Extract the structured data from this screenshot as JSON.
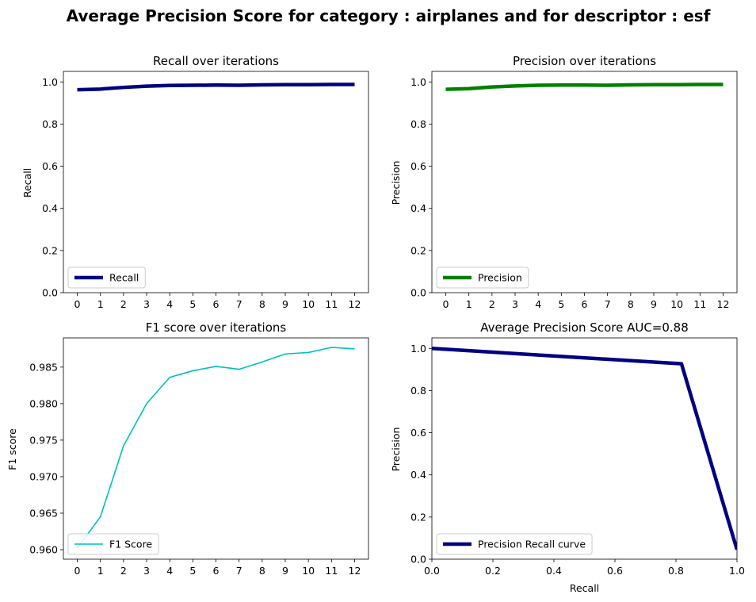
{
  "figure": {
    "title": "Average Precision Score for category : airplanes and for descriptor : esf"
  },
  "chart_data": [
    {
      "type": "line",
      "title": "Recall over iterations",
      "xlabel": "",
      "ylabel": "Recall",
      "x": [
        0,
        1,
        2,
        3,
        4,
        5,
        6,
        7,
        8,
        9,
        10,
        11,
        12
      ],
      "xticks": [
        "0",
        "1",
        "2",
        "3",
        "4",
        "5",
        "6",
        "7",
        "8",
        "9",
        "10",
        "11",
        "12"
      ],
      "yticks": [
        "0.0",
        "0.2",
        "0.4",
        "0.6",
        "0.8",
        "1.0"
      ],
      "ylim": [
        0,
        1.05
      ],
      "series": [
        {
          "name": "Recall",
          "color": "#000080",
          "values": [
            0.963,
            0.966,
            0.974,
            0.98,
            0.983,
            0.984,
            0.985,
            0.984,
            0.986,
            0.987,
            0.987,
            0.988,
            0.988
          ]
        }
      ],
      "legend": "lower-left",
      "grid": false
    },
    {
      "type": "line",
      "title": "Precision over iterations",
      "xlabel": "",
      "ylabel": "Precision",
      "x": [
        0,
        1,
        2,
        3,
        4,
        5,
        6,
        7,
        8,
        9,
        10,
        11,
        12
      ],
      "xticks": [
        "0",
        "1",
        "2",
        "3",
        "4",
        "5",
        "6",
        "7",
        "8",
        "9",
        "10",
        "11",
        "12"
      ],
      "yticks": [
        "0.0",
        "0.2",
        "0.4",
        "0.6",
        "0.8",
        "1.0"
      ],
      "ylim": [
        0,
        1.05
      ],
      "series": [
        {
          "name": "Precision",
          "color": "#008000",
          "values": [
            0.965,
            0.968,
            0.976,
            0.981,
            0.984,
            0.985,
            0.985,
            0.984,
            0.986,
            0.987,
            0.987,
            0.988,
            0.988
          ]
        }
      ],
      "legend": "lower-left",
      "grid": false
    },
    {
      "type": "line",
      "title": "F1 score over iterations",
      "xlabel": "",
      "ylabel": "F1 score",
      "x": [
        0,
        1,
        2,
        3,
        4,
        5,
        6,
        7,
        8,
        9,
        10,
        11,
        12
      ],
      "xticks": [
        "0",
        "1",
        "2",
        "3",
        "4",
        "5",
        "6",
        "7",
        "8",
        "9",
        "10",
        "11",
        "12"
      ],
      "yticks": [
        "0.960",
        "0.965",
        "0.970",
        "0.975",
        "0.980",
        "0.985"
      ],
      "ylim": [
        0.9587,
        0.989
      ],
      "series": [
        {
          "name": "F1 Score",
          "color": "#00bfbf",
          "values": [
            0.9602,
            0.9645,
            0.9742,
            0.98,
            0.9836,
            0.9845,
            0.9851,
            0.9847,
            0.9857,
            0.9868,
            0.987,
            0.9877,
            0.9875
          ]
        }
      ],
      "legend": "lower-left",
      "grid": false
    },
    {
      "type": "line",
      "title": "Average Precision Score AUC=0.88",
      "xlabel": "Recall",
      "ylabel": "Precision",
      "xlim": [
        0,
        1
      ],
      "ylim": [
        0,
        1.05
      ],
      "xticks": [
        "0.0",
        "0.2",
        "0.4",
        "0.6",
        "0.8",
        "1.0"
      ],
      "yticks": [
        "0.0",
        "0.2",
        "0.4",
        "0.6",
        "0.8",
        "1.0"
      ],
      "series": [
        {
          "name": "Precision Recall curve",
          "color": "#000080",
          "x": [
            0.0,
            0.818,
            1.0
          ],
          "y": [
            1.0,
            0.927,
            0.045
          ]
        }
      ],
      "legend": "lower-left",
      "grid": false
    }
  ]
}
